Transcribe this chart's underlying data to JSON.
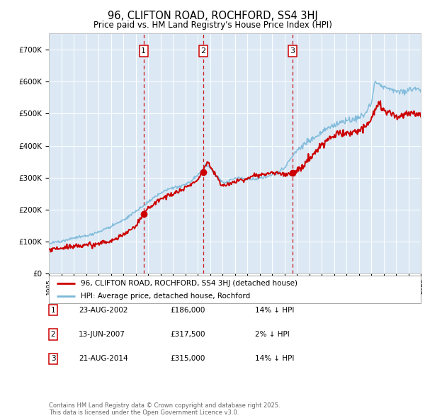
{
  "title": "96, CLIFTON ROAD, ROCHFORD, SS4 3HJ",
  "subtitle": "Price paid vs. HM Land Registry's House Price Index (HPI)",
  "bg_color": "#dce9f5",
  "hpi_color": "#7ab8d9",
  "price_color": "#cc0000",
  "marker_color": "#cc0000",
  "vline_color": "#cc0000",
  "grid_color": "#ffffff",
  "yticks": [
    0,
    100000,
    200000,
    300000,
    400000,
    500000,
    600000,
    700000
  ],
  "ytick_labels": [
    "£0",
    "£100K",
    "£200K",
    "£300K",
    "£400K",
    "£500K",
    "£600K",
    "£700K"
  ],
  "year_start": 1995,
  "year_end": 2025,
  "purchases": [
    {
      "date_num": 2002.646,
      "price": 186000,
      "label": "1"
    },
    {
      "date_num": 2007.452,
      "price": 317500,
      "label": "2"
    },
    {
      "date_num": 2014.646,
      "price": 315000,
      "label": "3"
    }
  ],
  "table_rows": [
    {
      "num": "1",
      "date": "23-AUG-2002",
      "price": "£186,000",
      "hpi": "14% ↓ HPI"
    },
    {
      "num": "2",
      "date": "13-JUN-2007",
      "price": "£317,500",
      "hpi": "2% ↓ HPI"
    },
    {
      "num": "3",
      "date": "21-AUG-2014",
      "price": "£315,000",
      "hpi": "14% ↓ HPI"
    }
  ],
  "legend_entries": [
    "96, CLIFTON ROAD, ROCHFORD, SS4 3HJ (detached house)",
    "HPI: Average price, detached house, Rochford"
  ],
  "footer": "Contains HM Land Registry data © Crown copyright and database right 2025.\nThis data is licensed under the Open Government Licence v3.0."
}
